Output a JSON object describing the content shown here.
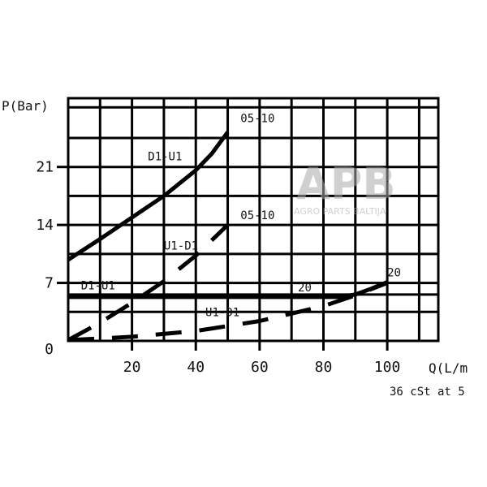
{
  "chart_data": {
    "type": "line",
    "ylabel": "P(Bar)",
    "xlabel": "Q(L/m",
    "footnote": "36 cSt at 5",
    "xlim": [
      0,
      116
    ],
    "ylim": [
      0,
      29.3
    ],
    "x_ticks": [
      20,
      40,
      60,
      80,
      100
    ],
    "y_ticks": [
      0,
      7,
      14,
      21
    ],
    "x_tick_labels": [
      "20",
      "40",
      "60",
      "80",
      "100"
    ],
    "y_tick_labels": [
      "0",
      "7",
      "14",
      "21"
    ],
    "x_grid": [
      10,
      20,
      30,
      40,
      50,
      60,
      70,
      80,
      90,
      100,
      110
    ],
    "y_grid": [
      3.5,
      5.6,
      7,
      10.5,
      14,
      17.5,
      21,
      24.5,
      28.2
    ],
    "grid": true,
    "series": [
      {
        "name": "D1-U1",
        "style": "solid",
        "points": [
          [
            0,
            9.8
          ],
          [
            10,
            12.3
          ],
          [
            20,
            14.9
          ],
          [
            30,
            17.5
          ],
          [
            40,
            20.6
          ],
          [
            45,
            22.6
          ],
          [
            50,
            25.2
          ]
        ]
      },
      {
        "name": "U1-D1",
        "style": "dashed",
        "points": [
          [
            0,
            0.1
          ],
          [
            10,
            2.2
          ],
          [
            20,
            4.6
          ],
          [
            30,
            7.2
          ],
          [
            40,
            10.3
          ],
          [
            50,
            14.0
          ]
        ]
      },
      {
        "name": "D1-U1",
        "style": "solid",
        "points": [
          [
            0,
            5.3
          ],
          [
            40,
            5.3
          ],
          [
            85,
            5.3
          ],
          [
            90,
            5.6
          ],
          [
            95,
            6.3
          ],
          [
            100,
            7.1
          ]
        ]
      },
      {
        "name": "U1-D1",
        "style": "dashed",
        "points": [
          [
            0,
            0.1
          ],
          [
            20,
            0.5
          ],
          [
            40,
            1.2
          ],
          [
            60,
            2.4
          ],
          [
            80,
            4.2
          ],
          [
            90,
            5.5
          ],
          [
            100,
            7.0
          ]
        ]
      }
    ],
    "annotations": [
      {
        "text": "05-10",
        "x": 54,
        "y": 26.4
      },
      {
        "text": "D1-U1",
        "x": 25,
        "y": 21.8
      },
      {
        "text": "05-10",
        "x": 54,
        "y": 14.7
      },
      {
        "text": "U1-D1",
        "x": 30,
        "y": 11.0
      },
      {
        "text": "D1-U1",
        "x": 4,
        "y": 6.2
      },
      {
        "text": "20",
        "x": 72,
        "y": 6.0
      },
      {
        "text": "U1-D1",
        "x": 43,
        "y": 3.0
      },
      {
        "text": "20",
        "x": 100,
        "y": 7.8
      }
    ],
    "colors": {
      "line": "#000000",
      "watermark": "#b8b8b8"
    }
  },
  "watermark": {
    "logo": "APB",
    "text": "AGRO PARTS BALTIJA"
  }
}
